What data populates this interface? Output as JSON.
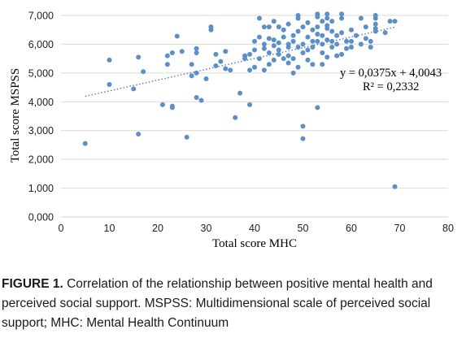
{
  "chart_data": {
    "type": "scatter",
    "xlabel": "Total score MHC",
    "ylabel": "Total score MSPSS",
    "xlim": [
      0,
      80
    ],
    "ylim": [
      0,
      7
    ],
    "x_ticks": [
      "0",
      "10",
      "20",
      "30",
      "40",
      "50",
      "60",
      "70",
      "80"
    ],
    "y_ticks": [
      "0,000",
      "1,000",
      "2,000",
      "3,000",
      "4,000",
      "5,000",
      "6,000",
      "7,000"
    ],
    "grid": "horizontal",
    "marker_color": "#5b8fc7",
    "trendline": {
      "style": "dotted",
      "slope": 0.0375,
      "intercept": 4.0043,
      "x_range": [
        5,
        69
      ],
      "equation": "y = 0,0375x + 4,0043",
      "r_squared": "R² = 0,2332"
    },
    "points": [
      [
        5,
        2.55
      ],
      [
        10,
        4.6
      ],
      [
        10,
        5.45
      ],
      [
        15,
        4.45
      ],
      [
        16,
        5.55
      ],
      [
        16,
        2.88
      ],
      [
        17,
        5.05
      ],
      [
        21,
        3.9
      ],
      [
        22,
        5.3
      ],
      [
        22,
        5.6
      ],
      [
        23,
        3.85
      ],
      [
        23,
        3.8
      ],
      [
        23,
        5.7
      ],
      [
        24,
        6.28
      ],
      [
        25,
        5.75
      ],
      [
        26,
        2.77
      ],
      [
        27,
        5.3
      ],
      [
        27,
        4.9
      ],
      [
        28,
        5.7
      ],
      [
        28,
        5.85
      ],
      [
        28,
        4.15
      ],
      [
        28,
        5.0
      ],
      [
        29,
        4.05
      ],
      [
        30,
        4.8
      ],
      [
        31,
        6.5
      ],
      [
        31,
        6.6
      ],
      [
        32,
        5.25
      ],
      [
        32,
        5.65
      ],
      [
        33,
        5.4
      ],
      [
        34,
        5.75
      ],
      [
        34,
        5.15
      ],
      [
        35,
        5.1
      ],
      [
        36,
        3.45
      ],
      [
        37,
        4.3
      ],
      [
        38,
        5.6
      ],
      [
        38,
        5.5
      ],
      [
        39,
        3.9
      ],
      [
        39,
        5.1
      ],
      [
        39,
        5.65
      ],
      [
        40,
        5.2
      ],
      [
        40,
        5.8
      ],
      [
        40,
        6.1
      ],
      [
        41,
        6.9
      ],
      [
        41,
        6.25
      ],
      [
        41,
        5.5
      ],
      [
        42,
        5.85
      ],
      [
        42,
        6.0
      ],
      [
        42,
        6.6
      ],
      [
        42,
        5.1
      ],
      [
        43,
        6.6
      ],
      [
        43,
        6.2
      ],
      [
        43,
        5.3
      ],
      [
        43,
        5.7
      ],
      [
        44,
        5.95
      ],
      [
        44,
        5.45
      ],
      [
        44,
        6.15
      ],
      [
        44,
        6.8
      ],
      [
        45,
        5.65
      ],
      [
        45,
        6.05
      ],
      [
        45,
        5.8
      ],
      [
        45,
        6.6
      ],
      [
        46,
        5.5
      ],
      [
        46,
        6.25
      ],
      [
        46,
        6.5
      ],
      [
        47,
        5.35
      ],
      [
        47,
        5.6
      ],
      [
        47,
        6.0
      ],
      [
        47,
        6.7
      ],
      [
        47,
        5.9
      ],
      [
        48,
        6.3
      ],
      [
        48,
        5.0
      ],
      [
        48,
        5.5
      ],
      [
        48,
        6.1
      ],
      [
        49,
        6.9
      ],
      [
        49,
        7.0
      ],
      [
        49,
        6.45
      ],
      [
        49,
        5.9
      ],
      [
        49,
        5.2
      ],
      [
        50,
        5.7
      ],
      [
        50,
        6.0
      ],
      [
        50,
        3.15
      ],
      [
        50,
        2.72
      ],
      [
        50,
        6.6
      ],
      [
        51,
        5.8
      ],
      [
        51,
        6.25
      ],
      [
        51,
        6.75
      ],
      [
        51,
        5.45
      ],
      [
        52,
        6.1
      ],
      [
        52,
        6.5
      ],
      [
        52,
        5.9
      ],
      [
        52,
        5.3
      ],
      [
        53,
        6.95
      ],
      [
        53,
        6.6
      ],
      [
        53,
        3.8
      ],
      [
        53,
        6.35
      ],
      [
        53,
        7.05
      ],
      [
        53,
        6.1
      ],
      [
        54,
        6.3
      ],
      [
        54,
        6.8
      ],
      [
        54,
        6.0
      ],
      [
        54,
        5.7
      ],
      [
        54,
        5.3
      ],
      [
        55,
        6.55
      ],
      [
        55,
        6.9
      ],
      [
        55,
        6.15
      ],
      [
        55,
        5.55
      ],
      [
        55,
        6.65
      ],
      [
        55,
        7.05
      ],
      [
        56,
        6.45
      ],
      [
        56,
        6.1
      ],
      [
        56,
        5.9
      ],
      [
        56,
        6.8
      ],
      [
        57,
        6.3
      ],
      [
        57,
        5.6
      ],
      [
        57,
        6.0
      ],
      [
        58,
        5.65
      ],
      [
        58,
        6.9
      ],
      [
        58,
        6.4
      ],
      [
        58,
        7.05
      ],
      [
        59,
        6.1
      ],
      [
        59,
        5.85
      ],
      [
        60,
        6.5
      ],
      [
        60,
        5.9
      ],
      [
        60,
        6.1
      ],
      [
        61,
        6.3
      ],
      [
        62,
        6.0
      ],
      [
        62,
        6.9
      ],
      [
        63,
        6.2
      ],
      [
        63,
        6.6
      ],
      [
        64,
        5.9
      ],
      [
        64,
        6.1
      ],
      [
        65,
        6.9
      ],
      [
        65,
        7.0
      ],
      [
        65,
        6.7
      ],
      [
        65,
        6.45
      ],
      [
        65,
        6.55
      ],
      [
        67,
        6.4
      ],
      [
        68,
        6.8
      ],
      [
        69,
        1.05
      ],
      [
        69,
        6.8
      ]
    ]
  },
  "caption": {
    "label": "FIGURE 1.",
    "text": " Correlation of the relationship between positive mental health and perceived social support. MSPSS: Multidimensional scale of perceived social support; MHC: Mental Health Continuum"
  }
}
